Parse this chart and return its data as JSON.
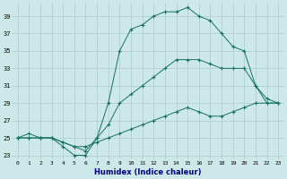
{
  "xlabel": "Humidex (Indice chaleur)",
  "bg_color": "#cce8e8",
  "line_color": "#1a7060",
  "grid_color": "#aacccc",
  "xlim": [
    -0.5,
    23.5
  ],
  "ylim": [
    22.5,
    40.5
  ],
  "yticks": [
    23,
    25,
    27,
    29,
    31,
    33,
    35,
    37,
    39
  ],
  "xticks": [
    0,
    1,
    2,
    3,
    4,
    5,
    6,
    7,
    8,
    9,
    10,
    11,
    12,
    13,
    14,
    15,
    16,
    17,
    18,
    19,
    20,
    21,
    22,
    23
  ],
  "series": [
    {
      "x": [
        0,
        1,
        2,
        3,
        4,
        5,
        6,
        7,
        8,
        9,
        10,
        11,
        12,
        13,
        14,
        15,
        16,
        17,
        18,
        19,
        20,
        21,
        22,
        23
      ],
      "y": [
        25,
        25.5,
        25,
        25,
        24,
        23,
        23,
        25,
        29,
        35,
        37.5,
        38,
        39,
        39.5,
        39.5,
        40,
        39,
        38.5,
        37,
        35.5,
        35,
        31,
        29,
        29
      ]
    },
    {
      "x": [
        0,
        1,
        2,
        3,
        4,
        5,
        6,
        7,
        8,
        9,
        10,
        11,
        12,
        13,
        14,
        15,
        16,
        17,
        18,
        19,
        20,
        21,
        22,
        23
      ],
      "y": [
        25,
        25,
        25,
        25,
        24.5,
        24,
        23.5,
        25,
        26.5,
        29,
        30,
        31,
        32,
        33,
        34,
        34,
        34,
        33.5,
        33,
        33,
        33,
        31,
        29.5,
        29
      ]
    },
    {
      "x": [
        0,
        1,
        2,
        3,
        4,
        5,
        6,
        7,
        8,
        9,
        10,
        11,
        12,
        13,
        14,
        15,
        16,
        17,
        18,
        19,
        20,
        21,
        22,
        23
      ],
      "y": [
        25,
        25,
        25,
        25,
        24.5,
        24,
        24,
        24.5,
        25,
        25.5,
        26,
        26.5,
        27,
        27.5,
        28,
        28.5,
        28,
        27.5,
        27.5,
        28,
        28.5,
        29,
        29,
        29
      ]
    }
  ]
}
